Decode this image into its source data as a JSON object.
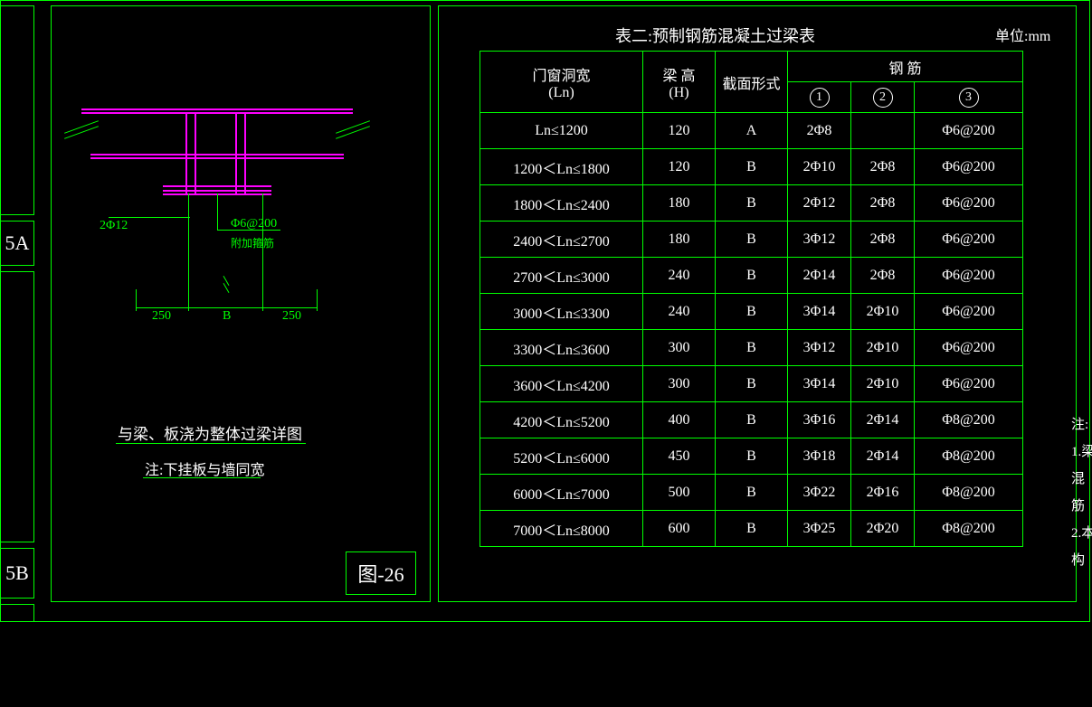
{
  "left": {
    "label_a": "5A",
    "label_b": "5B"
  },
  "figure_label": "图-26",
  "diagram": {
    "caption": "与梁、板浇为整体过梁详图",
    "note": "注:下挂板与墙同宽",
    "rebar_left": "2Φ12",
    "rebar_right": "Φ6@200",
    "rebar_right_sub": "附加箍筋",
    "dim_left": "250",
    "dim_mid": "B",
    "dim_right": "250",
    "colors": {
      "magenta": "#ff00ff",
      "green": "#00ff00",
      "white": "#ffffff"
    }
  },
  "table": {
    "title": "表二:预制钢筋混凝土过梁表",
    "unit": "单位:mm",
    "headers": {
      "ln": "门窗洞宽\n(Ln)",
      "h": "梁 高\n(H)",
      "section": "截面形式",
      "rebar": "钢  筋",
      "c1": "1",
      "c2": "2",
      "c3": "3"
    },
    "rows": [
      {
        "ln": "Ln≤1200",
        "h": "120",
        "sec": "A",
        "r1": "2Φ8",
        "r2": "",
        "r3": "Φ6@200"
      },
      {
        "ln": "1200＜Ln≤1800",
        "h": "120",
        "sec": "B",
        "r1": "2Φ10",
        "r2": "2Φ8",
        "r3": "Φ6@200"
      },
      {
        "ln": "1800＜Ln≤2400",
        "h": "180",
        "sec": "B",
        "r1": "2Φ12",
        "r2": "2Φ8",
        "r3": "Φ6@200"
      },
      {
        "ln": "2400＜Ln≤2700",
        "h": "180",
        "sec": "B",
        "r1": "3Φ12",
        "r2": "2Φ8",
        "r3": "Φ6@200"
      },
      {
        "ln": "2700＜Ln≤3000",
        "h": "240",
        "sec": "B",
        "r1": "2Φ14",
        "r2": "2Φ8",
        "r3": "Φ6@200"
      },
      {
        "ln": "3000＜Ln≤3300",
        "h": "240",
        "sec": "B",
        "r1": "3Φ14",
        "r2": "2Φ10",
        "r3": "Φ6@200"
      },
      {
        "ln": "3300＜Ln≤3600",
        "h": "300",
        "sec": "B",
        "r1": "3Φ12",
        "r2": "2Φ10",
        "r3": "Φ6@200"
      },
      {
        "ln": "3600＜Ln≤4200",
        "h": "300",
        "sec": "B",
        "r1": "3Φ14",
        "r2": "2Φ10",
        "r3": "Φ6@200"
      },
      {
        "ln": "4200＜Ln≤5200",
        "h": "400",
        "sec": "B",
        "r1": "3Φ16",
        "r2": "2Φ14",
        "r3": "Φ8@200"
      },
      {
        "ln": "5200＜Ln≤6000",
        "h": "450",
        "sec": "B",
        "r1": "3Φ18",
        "r2": "2Φ14",
        "r3": "Φ8@200"
      },
      {
        "ln": "6000＜Ln≤7000",
        "h": "500",
        "sec": "B",
        "r1": "3Φ22",
        "r2": "2Φ16",
        "r3": "Φ8@200"
      },
      {
        "ln": "7000＜Ln≤8000",
        "h": "600",
        "sec": "B",
        "r1": "3Φ25",
        "r2": "2Φ20",
        "r3": "Φ8@200"
      }
    ]
  },
  "side_notes": {
    "n0": "注:",
    "n1": "1.梁",
    "n2": "混",
    "n3": "筋",
    "n4": "2.本",
    "n5": "构"
  }
}
